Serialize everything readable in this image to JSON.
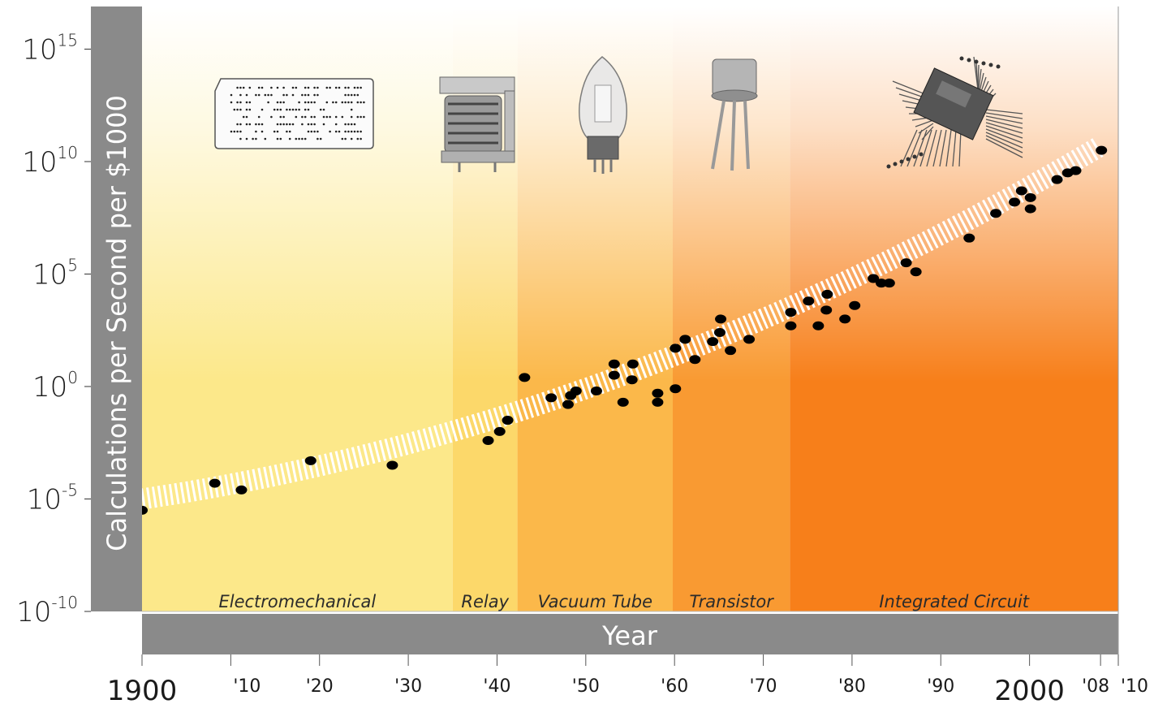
{
  "chart_data": {
    "type": "scatter",
    "title": "",
    "xlabel": "Year",
    "ylabel": "Calculations per Second per $1000",
    "y_scale": "log",
    "xlim": [
      1900,
      2010
    ],
    "ylim_exponent": [
      -10,
      16
    ],
    "x_ticks": [
      {
        "x": 1900,
        "label": "1900",
        "big": true
      },
      {
        "x": 1910,
        "label": "'10"
      },
      {
        "x": 1920,
        "label": "'20"
      },
      {
        "x": 1930,
        "label": "'30"
      },
      {
        "x": 1940,
        "label": "'40"
      },
      {
        "x": 1950,
        "label": "'50"
      },
      {
        "x": 1960,
        "label": "'60"
      },
      {
        "x": 1970,
        "label": "'70"
      },
      {
        "x": 1980,
        "label": "'80"
      },
      {
        "x": 1990,
        "label": "'90"
      },
      {
        "x": 2000,
        "label": "2000",
        "big": true
      },
      {
        "x": 2008,
        "label": "'08"
      },
      {
        "x": 2010,
        "label": "'10"
      }
    ],
    "y_ticks": [
      {
        "exp": 15,
        "base": "10",
        "sup": "15"
      },
      {
        "exp": 10,
        "base": "10",
        "sup": "10"
      },
      {
        "exp": 5,
        "base": "10",
        "sup": "5"
      },
      {
        "exp": 0,
        "base": "10",
        "sup": "0"
      },
      {
        "exp": -5,
        "base": "10",
        "sup": "-5"
      },
      {
        "exp": -10,
        "base": "10",
        "sup": "-10"
      }
    ],
    "eras": [
      {
        "name": "Electromechanical",
        "start": 1900,
        "end": 1935,
        "color": "#fce88a"
      },
      {
        "name": "Relay",
        "start": 1935,
        "end": 1942.3,
        "color": "#fcd86a"
      },
      {
        "name": "Vacuum Tube",
        "start": 1942.3,
        "end": 1959.8,
        "color": "#fbb84a"
      },
      {
        "name": "Transistor",
        "start": 1959.8,
        "end": 1973,
        "color": "#f99a32"
      },
      {
        "name": "Integrated Circuit",
        "start": 1973,
        "end": 2010,
        "color": "#f77f1a"
      }
    ],
    "trend": {
      "description": "exponential trend band",
      "color": "#ffffff"
    },
    "points": [
      {
        "year": 1900.0,
        "exp": -5.5
      },
      {
        "year": 1908.2,
        "exp": -4.3
      },
      {
        "year": 1911.2,
        "exp": -4.6
      },
      {
        "year": 1919.0,
        "exp": -3.3
      },
      {
        "year": 1928.2,
        "exp": -3.5
      },
      {
        "year": 1939.0,
        "exp": -2.4
      },
      {
        "year": 1940.3,
        "exp": -2.0
      },
      {
        "year": 1941.2,
        "exp": -1.5
      },
      {
        "year": 1943.1,
        "exp": 0.4
      },
      {
        "year": 1946.1,
        "exp": -0.5
      },
      {
        "year": 1948.0,
        "exp": -0.8
      },
      {
        "year": 1948.3,
        "exp": -0.4
      },
      {
        "year": 1948.9,
        "exp": -0.2
      },
      {
        "year": 1951.2,
        "exp": -0.2
      },
      {
        "year": 1953.2,
        "exp": 1.0
      },
      {
        "year": 1953.2,
        "exp": 0.5
      },
      {
        "year": 1954.2,
        "exp": -0.7
      },
      {
        "year": 1955.2,
        "exp": 0.3
      },
      {
        "year": 1955.3,
        "exp": 1.0
      },
      {
        "year": 1958.1,
        "exp": -0.3
      },
      {
        "year": 1958.1,
        "exp": -0.7
      },
      {
        "year": 1960.1,
        "exp": -0.1
      },
      {
        "year": 1960.1,
        "exp": 1.7
      },
      {
        "year": 1961.2,
        "exp": 2.1
      },
      {
        "year": 1962.3,
        "exp": 1.2
      },
      {
        "year": 1964.3,
        "exp": 2.0
      },
      {
        "year": 1965.1,
        "exp": 2.4
      },
      {
        "year": 1965.2,
        "exp": 3.0
      },
      {
        "year": 1966.3,
        "exp": 1.6
      },
      {
        "year": 1968.4,
        "exp": 2.1
      },
      {
        "year": 1973.1,
        "exp": 3.3
      },
      {
        "year": 1973.1,
        "exp": 2.7
      },
      {
        "year": 1975.1,
        "exp": 3.8
      },
      {
        "year": 1976.2,
        "exp": 2.7
      },
      {
        "year": 1977.1,
        "exp": 3.4
      },
      {
        "year": 1977.2,
        "exp": 4.1
      },
      {
        "year": 1979.2,
        "exp": 3.0
      },
      {
        "year": 1980.3,
        "exp": 3.6
      },
      {
        "year": 1982.4,
        "exp": 4.8
      },
      {
        "year": 1983.3,
        "exp": 4.6
      },
      {
        "year": 1984.2,
        "exp": 4.6
      },
      {
        "year": 1986.1,
        "exp": 5.5
      },
      {
        "year": 1987.2,
        "exp": 5.1
      },
      {
        "year": 1993.2,
        "exp": 6.6
      },
      {
        "year": 1996.2,
        "exp": 7.7
      },
      {
        "year": 1998.3,
        "exp": 8.2
      },
      {
        "year": 1999.1,
        "exp": 8.7
      },
      {
        "year": 2000.1,
        "exp": 8.4
      },
      {
        "year": 2000.1,
        "exp": 7.9
      },
      {
        "year": 2003.1,
        "exp": 9.2
      },
      {
        "year": 2004.3,
        "exp": 9.5
      },
      {
        "year": 2005.2,
        "exp": 9.6
      },
      {
        "year": 2008.1,
        "exp": 10.5
      }
    ]
  },
  "colors": {
    "axis_bar": "#8a8a8a",
    "axis_bar_text": "#ffffff",
    "point": "#000000"
  },
  "icons": [
    "punch-card-icon",
    "relay-icon",
    "vacuum-tube-icon",
    "transistor-icon",
    "integrated-circuit-icon"
  ]
}
